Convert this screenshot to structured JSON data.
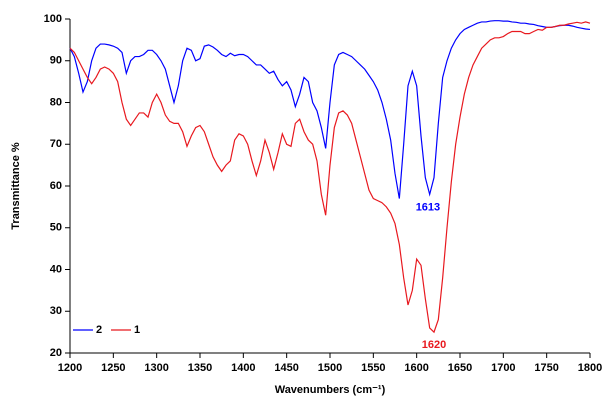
{
  "chart_data": {
    "type": "line",
    "xlabel": "Wavenumbers (cm⁻¹)",
    "ylabel": "Transmittance %",
    "x": [
      1200,
      1205,
      1210,
      1215,
      1220,
      1225,
      1230,
      1235,
      1240,
      1245,
      1250,
      1255,
      1260,
      1265,
      1270,
      1275,
      1280,
      1285,
      1290,
      1295,
      1300,
      1305,
      1310,
      1315,
      1320,
      1325,
      1330,
      1335,
      1340,
      1345,
      1350,
      1355,
      1360,
      1365,
      1370,
      1375,
      1380,
      1385,
      1390,
      1395,
      1400,
      1405,
      1410,
      1415,
      1420,
      1425,
      1430,
      1435,
      1440,
      1445,
      1450,
      1455,
      1460,
      1465,
      1470,
      1475,
      1480,
      1485,
      1490,
      1495,
      1500,
      1505,
      1510,
      1515,
      1520,
      1525,
      1530,
      1535,
      1540,
      1545,
      1550,
      1555,
      1560,
      1565,
      1570,
      1575,
      1580,
      1585,
      1590,
      1595,
      1600,
      1605,
      1610,
      1615,
      1620,
      1625,
      1630,
      1635,
      1640,
      1645,
      1650,
      1655,
      1660,
      1665,
      1670,
      1675,
      1680,
      1685,
      1690,
      1695,
      1700,
      1705,
      1710,
      1715,
      1720,
      1725,
      1730,
      1735,
      1740,
      1745,
      1750,
      1755,
      1760,
      1765,
      1770,
      1775,
      1780,
      1785,
      1790,
      1795,
      1800
    ],
    "series": [
      {
        "name": "2",
        "color": "#0000ff",
        "values": [
          93,
          91,
          87,
          82.5,
          85,
          90,
          93,
          94,
          94,
          93.8,
          93.5,
          93,
          92,
          87,
          90,
          91,
          91,
          91.5,
          92.5,
          92.5,
          91.5,
          90,
          88,
          84,
          80,
          84,
          90,
          93,
          92.5,
          90,
          90.5,
          93.5,
          93.8,
          93.3,
          92.5,
          91.5,
          91,
          91.8,
          91.2,
          91.5,
          91.5,
          91,
          90,
          89,
          89,
          88,
          87,
          87.5,
          85.5,
          84,
          85,
          83,
          79,
          82,
          86,
          85,
          80,
          78,
          74,
          69,
          80,
          89,
          91.5,
          92,
          91.5,
          91,
          90,
          89,
          88,
          86.5,
          85,
          83,
          80,
          76,
          71,
          63,
          57,
          70,
          84,
          87.5,
          84,
          72,
          62,
          58,
          62,
          75,
          86,
          90,
          93,
          95,
          96.5,
          97.5,
          98,
          98.5,
          99,
          99.3,
          99.3,
          99.5,
          99.6,
          99.6,
          99.5,
          99.5,
          99.3,
          99.2,
          99,
          99,
          98.8,
          98.7,
          98.4,
          98.2,
          98,
          98,
          98.2,
          98.4,
          98.5,
          98.5,
          98.3,
          98,
          97.8,
          97.6,
          97.5
        ]
      },
      {
        "name": "1",
        "color": "#e8191f",
        "values": [
          93,
          92,
          90,
          88,
          86,
          84.5,
          86,
          88,
          88.5,
          88,
          87,
          85,
          80,
          76,
          74.5,
          76,
          77.5,
          77.5,
          76.5,
          80,
          82,
          80,
          77,
          75.5,
          75,
          75,
          73,
          69.5,
          72,
          74,
          74.5,
          73,
          70,
          67,
          65,
          63.5,
          65,
          66,
          71,
          72.5,
          72,
          70,
          66,
          62.5,
          66,
          71,
          68,
          64,
          68,
          72.5,
          70,
          69.5,
          75,
          76,
          73,
          71,
          70,
          66,
          58,
          53,
          65,
          74,
          77.5,
          78,
          77,
          75,
          71,
          67,
          63,
          59,
          57,
          56.5,
          56,
          55,
          53.5,
          51,
          46,
          38,
          31.5,
          35,
          42.5,
          41,
          33,
          26,
          25,
          28,
          38,
          50,
          61,
          70,
          76.5,
          82,
          86,
          89,
          91,
          93,
          94,
          95,
          95.5,
          95.5,
          95.8,
          96.5,
          97,
          97,
          97,
          96.5,
          96.5,
          97,
          97.5,
          97.3,
          98,
          98,
          98.2,
          98.5,
          98.5,
          98.8,
          99,
          99.2,
          99,
          99.3,
          99
        ]
      }
    ],
    "annotations": [
      "1613",
      "1620"
    ],
    "xlim": [
      1200,
      1800
    ],
    "xticks": [
      1200,
      1250,
      1300,
      1350,
      1400,
      1450,
      1500,
      1550,
      1600,
      1650,
      1700,
      1750,
      1800
    ],
    "ylim": [
      20,
      100
    ],
    "yticks": [
      20,
      30,
      40,
      50,
      60,
      70,
      80,
      90,
      100
    ],
    "legend": "lower left"
  }
}
